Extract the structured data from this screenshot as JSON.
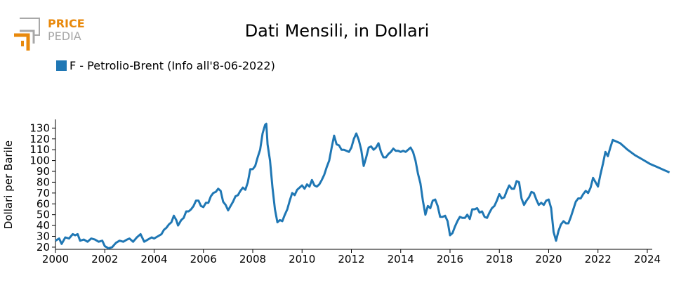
{
  "logo": {
    "line1": "PRICE",
    "line2": "PEDIA",
    "accent": "#e8890c",
    "gray": "#a8a8a8"
  },
  "chart_data": {
    "type": "line",
    "title": "Dati Mensili, in Dollari",
    "ylabel": "Dollari per Barile",
    "xlabel": "",
    "xlim": [
      2000,
      2024.2
    ],
    "ylim": [
      18,
      138
    ],
    "x_ticks": [
      2000,
      2002,
      2004,
      2006,
      2008,
      2010,
      2012,
      2014,
      2016,
      2018,
      2020,
      2022,
      2024
    ],
    "y_ticks": [
      20,
      30,
      40,
      50,
      60,
      70,
      80,
      90,
      100,
      110,
      120,
      130
    ],
    "legend_placement": "top-left",
    "grid": false,
    "series": [
      {
        "name": "F - Petrolio-Brent (Info all'8-06-2022)",
        "color": "#1f77b4",
        "points": [
          [
            2000.0,
            26
          ],
          [
            2000.15,
            28
          ],
          [
            2000.25,
            23
          ],
          [
            2000.4,
            29
          ],
          [
            2000.55,
            28
          ],
          [
            2000.7,
            32
          ],
          [
            2000.8,
            31
          ],
          [
            2000.9,
            32
          ],
          [
            2001.0,
            26
          ],
          [
            2001.15,
            27
          ],
          [
            2001.3,
            25
          ],
          [
            2001.45,
            28
          ],
          [
            2001.6,
            27
          ],
          [
            2001.75,
            25
          ],
          [
            2001.9,
            26
          ],
          [
            2002.0,
            21
          ],
          [
            2002.15,
            19
          ],
          [
            2002.3,
            20
          ],
          [
            2002.45,
            24
          ],
          [
            2002.6,
            26
          ],
          [
            2002.75,
            25
          ],
          [
            2002.9,
            27
          ],
          [
            2003.0,
            28
          ],
          [
            2003.15,
            25
          ],
          [
            2003.3,
            29
          ],
          [
            2003.45,
            32
          ],
          [
            2003.6,
            25
          ],
          [
            2003.75,
            27
          ],
          [
            2003.9,
            29
          ],
          [
            2004.0,
            28
          ],
          [
            2004.15,
            30
          ],
          [
            2004.3,
            32
          ],
          [
            2004.4,
            36
          ],
          [
            2004.5,
            38
          ],
          [
            2004.6,
            41
          ],
          [
            2004.7,
            43
          ],
          [
            2004.8,
            49
          ],
          [
            2004.9,
            45
          ],
          [
            2004.97,
            40
          ],
          [
            2005.1,
            45
          ],
          [
            2005.2,
            47
          ],
          [
            2005.3,
            53
          ],
          [
            2005.4,
            53
          ],
          [
            2005.5,
            55
          ],
          [
            2005.6,
            58
          ],
          [
            2005.7,
            63
          ],
          [
            2005.8,
            63
          ],
          [
            2005.9,
            58
          ],
          [
            2006.0,
            57
          ],
          [
            2006.1,
            61
          ],
          [
            2006.2,
            61
          ],
          [
            2006.3,
            67
          ],
          [
            2006.4,
            70
          ],
          [
            2006.5,
            71
          ],
          [
            2006.6,
            74
          ],
          [
            2006.7,
            72
          ],
          [
            2006.8,
            62
          ],
          [
            2006.9,
            59
          ],
          [
            2007.0,
            54
          ],
          [
            2007.1,
            58
          ],
          [
            2007.2,
            62
          ],
          [
            2007.3,
            67
          ],
          [
            2007.4,
            68
          ],
          [
            2007.5,
            72
          ],
          [
            2007.6,
            75
          ],
          [
            2007.7,
            73
          ],
          [
            2007.8,
            80
          ],
          [
            2007.9,
            92
          ],
          [
            2008.0,
            92
          ],
          [
            2008.1,
            95
          ],
          [
            2008.2,
            103
          ],
          [
            2008.3,
            110
          ],
          [
            2008.4,
            125
          ],
          [
            2008.5,
            133
          ],
          [
            2008.55,
            134
          ],
          [
            2008.6,
            115
          ],
          [
            2008.7,
            100
          ],
          [
            2008.8,
            75
          ],
          [
            2008.9,
            55
          ],
          [
            2009.0,
            43
          ],
          [
            2009.1,
            45
          ],
          [
            2009.2,
            44
          ],
          [
            2009.3,
            50
          ],
          [
            2009.4,
            55
          ],
          [
            2009.5,
            63
          ],
          [
            2009.6,
            70
          ],
          [
            2009.7,
            68
          ],
          [
            2009.8,
            73
          ],
          [
            2009.9,
            75
          ],
          [
            2010.0,
            77
          ],
          [
            2010.1,
            74
          ],
          [
            2010.2,
            78
          ],
          [
            2010.3,
            76
          ],
          [
            2010.4,
            82
          ],
          [
            2010.5,
            77
          ],
          [
            2010.6,
            76
          ],
          [
            2010.7,
            78
          ],
          [
            2010.8,
            82
          ],
          [
            2010.9,
            87
          ],
          [
            2011.0,
            94
          ],
          [
            2011.1,
            100
          ],
          [
            2011.2,
            112
          ],
          [
            2011.3,
            123
          ],
          [
            2011.4,
            115
          ],
          [
            2011.5,
            114
          ],
          [
            2011.6,
            110
          ],
          [
            2011.7,
            110
          ],
          [
            2011.8,
            109
          ],
          [
            2011.9,
            108
          ],
          [
            2012.0,
            112
          ],
          [
            2012.1,
            120
          ],
          [
            2012.2,
            125
          ],
          [
            2012.3,
            119
          ],
          [
            2012.4,
            110
          ],
          [
            2012.5,
            95
          ],
          [
            2012.6,
            103
          ],
          [
            2012.7,
            112
          ],
          [
            2012.8,
            113
          ],
          [
            2012.9,
            110
          ],
          [
            2013.0,
            112
          ],
          [
            2013.1,
            116
          ],
          [
            2013.2,
            108
          ],
          [
            2013.3,
            103
          ],
          [
            2013.4,
            103
          ],
          [
            2013.5,
            106
          ],
          [
            2013.6,
            108
          ],
          [
            2013.7,
            111
          ],
          [
            2013.8,
            109
          ],
          [
            2013.9,
            109
          ],
          [
            2014.0,
            108
          ],
          [
            2014.1,
            109
          ],
          [
            2014.2,
            108
          ],
          [
            2014.3,
            110
          ],
          [
            2014.4,
            112
          ],
          [
            2014.5,
            108
          ],
          [
            2014.6,
            100
          ],
          [
            2014.7,
            88
          ],
          [
            2014.8,
            79
          ],
          [
            2014.9,
            63
          ],
          [
            2015.0,
            50
          ],
          [
            2015.1,
            58
          ],
          [
            2015.2,
            56
          ],
          [
            2015.3,
            63
          ],
          [
            2015.4,
            64
          ],
          [
            2015.5,
            58
          ],
          [
            2015.6,
            48
          ],
          [
            2015.7,
            48
          ],
          [
            2015.8,
            49
          ],
          [
            2015.9,
            44
          ],
          [
            2016.0,
            31
          ],
          [
            2016.1,
            33
          ],
          [
            2016.2,
            39
          ],
          [
            2016.3,
            44
          ],
          [
            2016.4,
            48
          ],
          [
            2016.5,
            47
          ],
          [
            2016.6,
            47
          ],
          [
            2016.7,
            50
          ],
          [
            2016.8,
            46
          ],
          [
            2016.9,
            55
          ],
          [
            2017.0,
            55
          ],
          [
            2017.1,
            56
          ],
          [
            2017.2,
            52
          ],
          [
            2017.3,
            53
          ],
          [
            2017.4,
            48
          ],
          [
            2017.5,
            47
          ],
          [
            2017.6,
            52
          ],
          [
            2017.7,
            56
          ],
          [
            2017.8,
            58
          ],
          [
            2017.9,
            63
          ],
          [
            2018.0,
            69
          ],
          [
            2018.1,
            65
          ],
          [
            2018.2,
            66
          ],
          [
            2018.3,
            72
          ],
          [
            2018.4,
            77
          ],
          [
            2018.5,
            74
          ],
          [
            2018.6,
            74
          ],
          [
            2018.7,
            81
          ],
          [
            2018.8,
            80
          ],
          [
            2018.9,
            65
          ],
          [
            2019.0,
            59
          ],
          [
            2019.1,
            63
          ],
          [
            2019.2,
            66
          ],
          [
            2019.3,
            71
          ],
          [
            2019.4,
            70
          ],
          [
            2019.5,
            64
          ],
          [
            2019.6,
            59
          ],
          [
            2019.7,
            61
          ],
          [
            2019.8,
            59
          ],
          [
            2019.9,
            63
          ],
          [
            2020.0,
            64
          ],
          [
            2020.1,
            56
          ],
          [
            2020.2,
            34
          ],
          [
            2020.3,
            26
          ],
          [
            2020.4,
            35
          ],
          [
            2020.5,
            41
          ],
          [
            2020.6,
            44
          ],
          [
            2020.7,
            42
          ],
          [
            2020.8,
            42
          ],
          [
            2020.9,
            48
          ],
          [
            2021.0,
            55
          ],
          [
            2021.1,
            62
          ],
          [
            2021.2,
            65
          ],
          [
            2021.3,
            65
          ],
          [
            2021.4,
            69
          ],
          [
            2021.5,
            72
          ],
          [
            2021.6,
            70
          ],
          [
            2021.7,
            75
          ],
          [
            2021.8,
            84
          ],
          [
            2021.9,
            80
          ],
          [
            2022.0,
            76
          ],
          [
            2022.1,
            87
          ],
          [
            2022.2,
            97
          ],
          [
            2022.3,
            108
          ],
          [
            2022.4,
            104
          ],
          [
            2022.5,
            112
          ],
          [
            2022.6,
            119
          ],
          [
            2022.9,
            116
          ],
          [
            2023.2,
            110
          ],
          [
            2023.5,
            105
          ],
          [
            2023.8,
            101
          ],
          [
            2024.1,
            97
          ],
          [
            2024.4,
            94
          ],
          [
            2024.7,
            91
          ],
          [
            2024.9,
            89
          ]
        ]
      }
    ]
  }
}
